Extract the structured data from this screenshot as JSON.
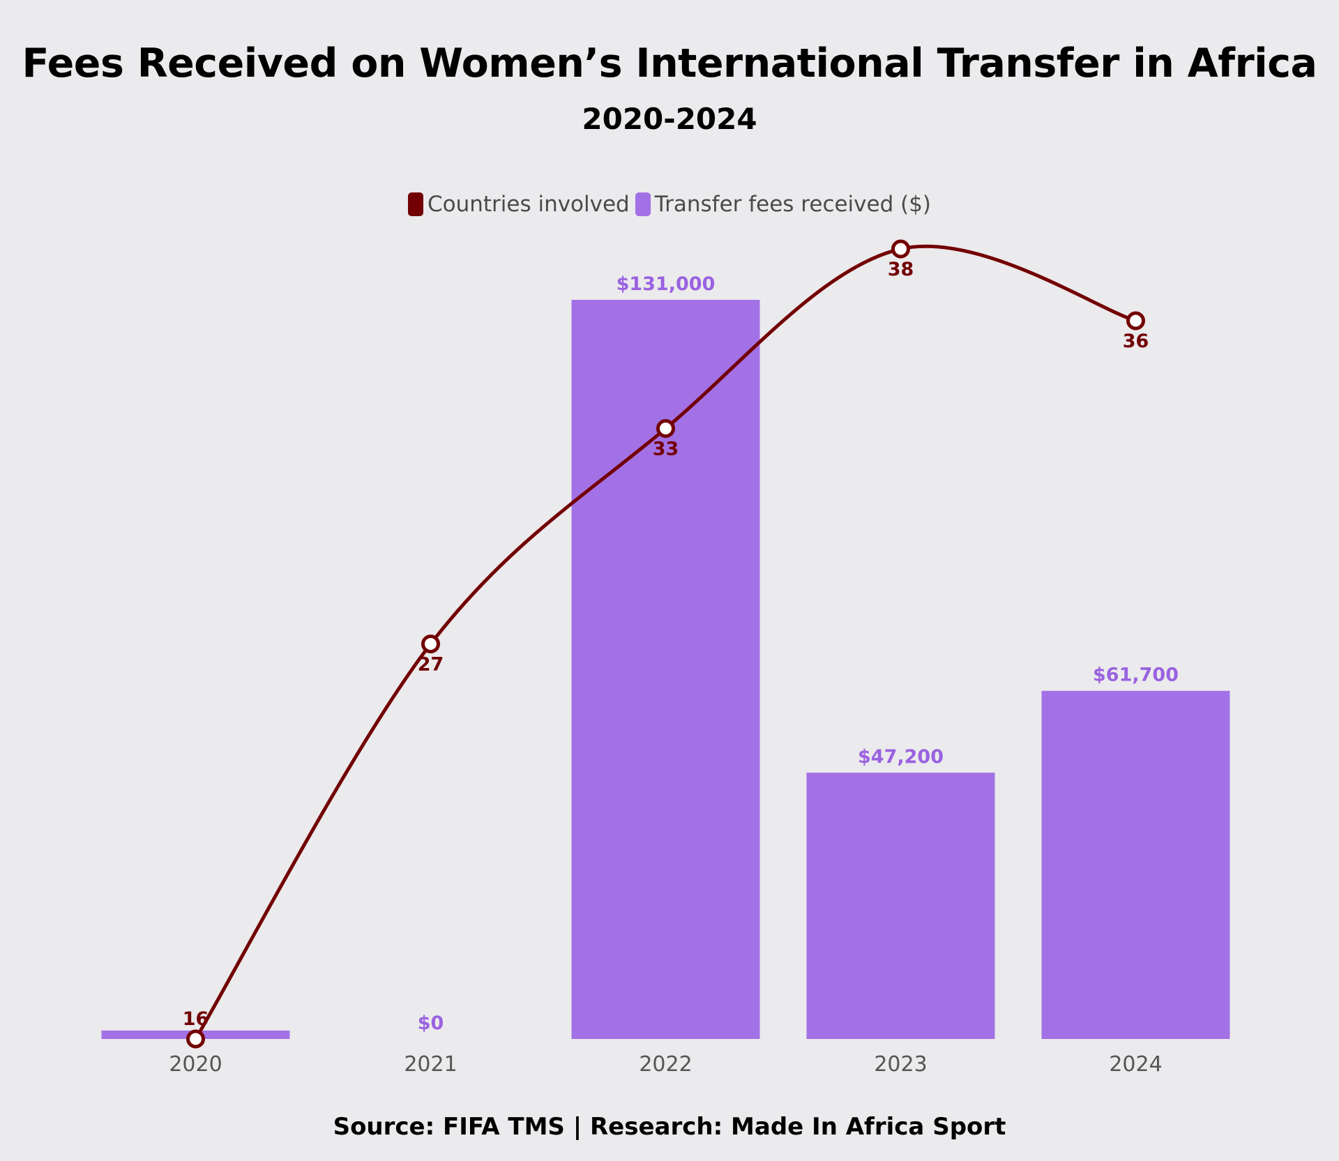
{
  "chart_data": {
    "type": "bar",
    "title": "Fees Received on Women’s International Transfer in Africa",
    "subtitle": "2020-2024",
    "categories": [
      "2020",
      "2021",
      "2022",
      "2023",
      "2024"
    ],
    "series": [
      {
        "name": "Transfer fees received ($)",
        "type": "bar",
        "values": [
          1500,
          0,
          131000,
          47200,
          61700
        ],
        "labels": [
          "",
          "$0",
          "$131,000",
          "$47,200",
          "$61,700"
        ],
        "color": "#a371e6",
        "label_color": "#9a62e0"
      },
      {
        "name": "Countries involved",
        "type": "line",
        "smooth": true,
        "values": [
          16,
          27,
          33,
          38,
          36
        ],
        "labels": [
          "16",
          "27",
          "33",
          "38",
          "36"
        ],
        "color": "#720003"
      }
    ],
    "legend": "top-center",
    "grid": false
  },
  "source": "Source: FIFA TMS | Research: Made In Africa Sport"
}
